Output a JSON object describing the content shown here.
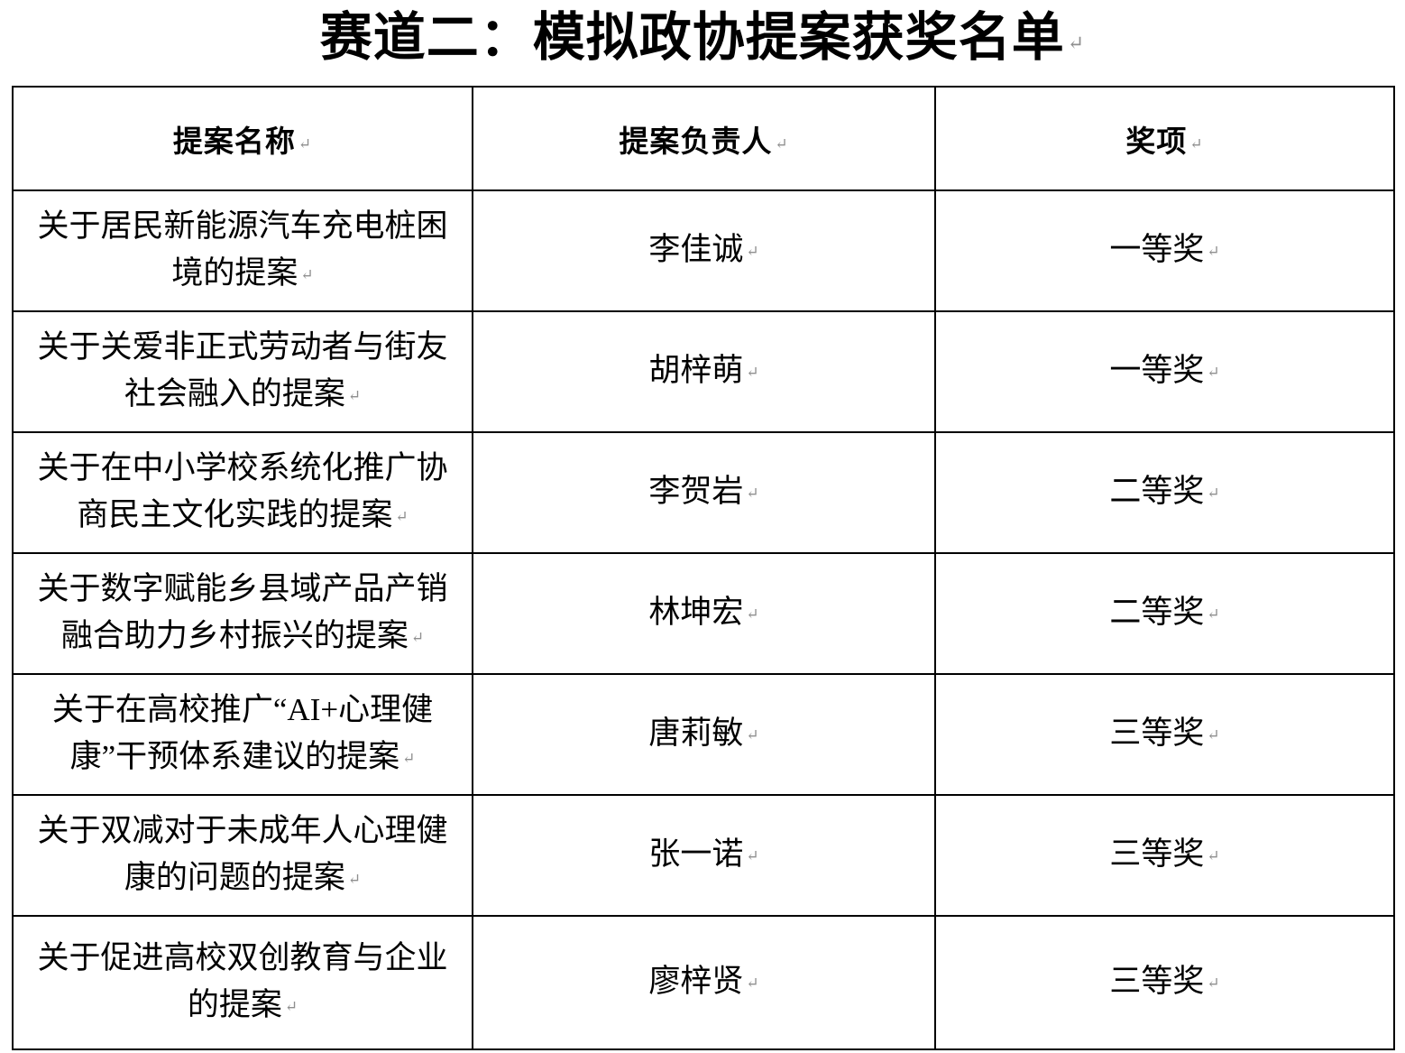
{
  "page": {
    "title": "赛道二：模拟政协提案获奖名单",
    "paragraph_mark": "↵"
  },
  "table": {
    "headers": [
      "提案名称",
      "提案负责人",
      "奖项"
    ],
    "rows": [
      {
        "proposal": "关于居民新能源汽车充电桩困境的提案",
        "lead": "李佳诚",
        "award": "一等奖"
      },
      {
        "proposal": "关于关爱非正式劳动者与街友社会融入的提案",
        "lead": "胡梓萌",
        "award": "一等奖"
      },
      {
        "proposal": "关于在中小学校系统化推广协商民主文化实践的提案",
        "lead": "李贺岩",
        "award": "二等奖"
      },
      {
        "proposal": "关于数字赋能乡县域产品产销融合助力乡村振兴的提案",
        "lead": "林坤宏",
        "award": "二等奖"
      },
      {
        "proposal": "关于在高校推广“AI+心理健康”干预体系建议的提案",
        "lead": "唐莉敏",
        "award": "三等奖"
      },
      {
        "proposal": "关于双减对于未成年人心理健康的问题的提案",
        "lead": "张一诺",
        "award": "三等奖"
      },
      {
        "proposal": "关于促进高校双创教育与企业的提案",
        "lead": "廖梓贤",
        "award": "三等奖"
      }
    ]
  }
}
